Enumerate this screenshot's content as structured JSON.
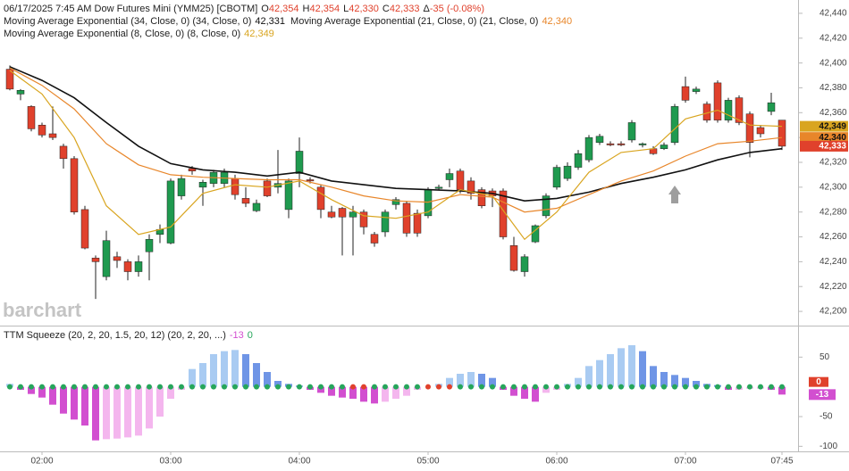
{
  "chart_data": [
    {
      "type": "candlestick",
      "title": "06/17/2025  7:45 AM Dow Futures Mini (YMM25) [CBOTM]",
      "stats": [
        {
          "label": "O",
          "value": "42,354"
        },
        {
          "label": "H",
          "value": "42,354"
        },
        {
          "label": "L",
          "value": "42,330"
        },
        {
          "label": "C",
          "value": "42,333"
        },
        {
          "label": "Δ",
          "value": "-35 (-0.08%)"
        }
      ],
      "watermark": "barchart",
      "up_color": "#1f9a4f",
      "down_color": "#e0412c",
      "x": [
        "01:45",
        "01:50",
        "01:55",
        "02:00",
        "02:05",
        "02:10",
        "02:15",
        "02:20",
        "02:25",
        "02:30",
        "02:35",
        "02:40",
        "02:45",
        "02:50",
        "02:55",
        "03:00",
        "03:05",
        "03:10",
        "03:15",
        "03:20",
        "03:25",
        "03:30",
        "03:35",
        "03:40",
        "03:45",
        "03:50",
        "03:55",
        "04:00",
        "04:05",
        "04:10",
        "04:15",
        "04:20",
        "04:25",
        "04:30",
        "04:35",
        "04:40",
        "04:45",
        "04:50",
        "04:55",
        "05:00",
        "05:05",
        "05:10",
        "05:15",
        "05:20",
        "05:25",
        "05:30",
        "05:35",
        "05:40",
        "05:45",
        "05:50",
        "05:55",
        "06:00",
        "06:05",
        "06:10",
        "06:15",
        "06:20",
        "06:25",
        "06:30",
        "06:35",
        "06:40",
        "06:45",
        "06:50",
        "06:55",
        "07:00",
        "07:05",
        "07:10",
        "07:15",
        "07:20",
        "07:25",
        "07:30",
        "07:35",
        "07:40",
        "07:45"
      ],
      "open": [
        42395,
        42375,
        42365,
        42350,
        42343,
        42333,
        42323,
        42282,
        42243,
        42228,
        42244,
        42240,
        42232,
        42248,
        42262,
        42255,
        42293,
        42315,
        42300,
        42303,
        42303,
        42307,
        42291,
        42281,
        42305,
        42300,
        42282,
        42311,
        42306,
        42300,
        42280,
        42283,
        42276,
        42280,
        42262,
        42264,
        42286,
        42287,
        42279,
        42277,
        42299,
        42306,
        42313,
        42305,
        42298,
        42297,
        42297,
        42253,
        42232,
        42256,
        42277,
        42300,
        42307,
        42316,
        42322,
        42336,
        42335,
        42335,
        42338,
        42334,
        42331,
        42331,
        42336,
        42381,
        42377,
        42367,
        42384,
        42354,
        42372,
        42359,
        42348,
        42361,
        42354
      ],
      "high": [
        42398,
        42379,
        42366,
        42352,
        42365,
        42335,
        42325,
        42285,
        42245,
        42265,
        42248,
        42242,
        42245,
        42262,
        42270,
        42307,
        42310,
        42317,
        42306,
        42314,
        42315,
        42310,
        42300,
        42290,
        42307,
        42330,
        42307,
        42340,
        42308,
        42302,
        42285,
        42284,
        42285,
        42282,
        42264,
        42282,
        42292,
        42289,
        42282,
        42300,
        42302,
        42315,
        42315,
        42308,
        42300,
        42299,
        42299,
        42260,
        42246,
        42270,
        42295,
        42318,
        42320,
        42330,
        42342,
        42343,
        42337,
        42337,
        42354,
        42336,
        42333,
        42336,
        42367,
        42389,
        42381,
        42369,
        42386,
        42372,
        42374,
        42361,
        42350,
        42376,
        42354
      ],
      "low": [
        42378,
        42370,
        42345,
        42340,
        42338,
        42315,
        42278,
        42250,
        42210,
        42225,
        42235,
        42225,
        42228,
        42225,
        42255,
        42254,
        42290,
        42310,
        42285,
        42300,
        42300,
        42290,
        42284,
        42280,
        42292,
        42295,
        42275,
        42300,
        42303,
        42275,
        42275,
        42245,
        42245,
        42262,
        42252,
        42260,
        42282,
        42260,
        42260,
        42275,
        42298,
        42300,
        42295,
        42290,
        42283,
        42284,
        42258,
        42232,
        42228,
        42255,
        42275,
        42298,
        42305,
        42314,
        42320,
        42334,
        42333,
        42333,
        42336,
        42332,
        42326,
        42330,
        42334,
        42368,
        42375,
        42352,
        42352,
        42352,
        42350,
        42324,
        42340,
        42358,
        42330
      ],
      "close": [
        42379,
        42378,
        42347,
        42342,
        42340,
        42323,
        42280,
        42251,
        42240,
        42257,
        42241,
        42232,
        42240,
        42258,
        42266,
        42305,
        42307,
        42313,
        42304,
        42312,
        42312,
        42294,
        42287,
        42287,
        42293,
        42303,
        42305,
        42329,
        42305,
        42282,
        42276,
        42276,
        42280,
        42268,
        42255,
        42280,
        42290,
        42263,
        42263,
        42298,
        42300,
        42311,
        42298,
        42295,
        42285,
        42293,
        42260,
        42233,
        42244,
        42269,
        42293,
        42316,
        42317,
        42327,
        42340,
        42341,
        42334,
        42334,
        42352,
        42335,
        42327,
        42334,
        42365,
        42370,
        42379,
        42354,
        42354,
        42370,
        42352,
        42336,
        42343,
        42368,
        42333
      ],
      "close_label": "42,333",
      "series": [
        {
          "name": "Moving Average Exponential (34, Close, 0)  (34, Close, 0)",
          "color": "#111111",
          "last_label": "42,331",
          "x": [
            "01:45",
            "02:00",
            "02:15",
            "02:30",
            "02:45",
            "03:00",
            "03:15",
            "03:30",
            "03:45",
            "04:00",
            "04:15",
            "04:30",
            "04:45",
            "05:00",
            "05:15",
            "05:30",
            "05:45",
            "06:00",
            "06:15",
            "06:30",
            "06:45",
            "07:00",
            "07:15",
            "07:30",
            "07:45"
          ],
          "values": [
            42397,
            42386,
            42372,
            42352,
            42333,
            42319,
            42314,
            42312,
            42309,
            42312,
            42305,
            42302,
            42299,
            42298,
            42297,
            42295,
            42289,
            42291,
            42296,
            42303,
            42308,
            42314,
            42322,
            42328,
            42331
          ]
        },
        {
          "name": "Moving Average Exponential (21, Close, 0)  (21, Close, 0)",
          "color": "#e8862a",
          "last_label": "42,340",
          "x": [
            "01:45",
            "02:00",
            "02:15",
            "02:30",
            "02:45",
            "03:00",
            "03:15",
            "03:30",
            "03:45",
            "04:00",
            "04:15",
            "04:30",
            "04:45",
            "05:00",
            "05:15",
            "05:30",
            "05:45",
            "06:00",
            "06:15",
            "06:30",
            "06:45",
            "07:00",
            "07:15",
            "07:30",
            "07:45"
          ],
          "values": [
            42396,
            42382,
            42363,
            42335,
            42318,
            42310,
            42308,
            42307,
            42306,
            42306,
            42300,
            42293,
            42289,
            42288,
            42294,
            42292,
            42280,
            42283,
            42294,
            42305,
            42313,
            42325,
            42335,
            42337,
            42340
          ]
        },
        {
          "name": "Moving Average Exponential (8, Close, 0)  (8, Close, 0)",
          "color": "#d9a520",
          "last_label": "42,349",
          "x": [
            "01:45",
            "02:00",
            "02:15",
            "02:30",
            "02:45",
            "03:00",
            "03:15",
            "03:30",
            "03:45",
            "04:00",
            "04:15",
            "04:30",
            "04:45",
            "05:00",
            "05:15",
            "05:30",
            "05:45",
            "06:00",
            "06:15",
            "06:30",
            "06:45",
            "07:00",
            "07:15",
            "07:30",
            "07:45"
          ],
          "values": [
            42394,
            42375,
            42340,
            42285,
            42262,
            42268,
            42295,
            42302,
            42300,
            42305,
            42290,
            42277,
            42275,
            42280,
            42298,
            42293,
            42258,
            42280,
            42312,
            42328,
            42331,
            42355,
            42362,
            42350,
            42349
          ]
        }
      ],
      "ylim": [
        42190,
        42450
      ],
      "yticks": [
        {
          "value": 42200,
          "label": "42,200"
        },
        {
          "value": 42220,
          "label": "42,220"
        },
        {
          "value": 42240,
          "label": "42,240"
        },
        {
          "value": 42260,
          "label": "42,260"
        },
        {
          "value": 42280,
          "label": "42,280"
        },
        {
          "value": 42300,
          "label": "42,300"
        },
        {
          "value": 42320,
          "label": "42,320"
        },
        {
          "value": 42340,
          "label": "42,340"
        },
        {
          "value": 42360,
          "label": "42,360"
        },
        {
          "value": 42380,
          "label": "42,380"
        },
        {
          "value": 42400,
          "label": "42,400"
        },
        {
          "value": 42420,
          "label": "42,420"
        },
        {
          "value": 42440,
          "label": "42,440"
        }
      ]
    },
    {
      "type": "histogram",
      "title": "TTM Squeeze (20, 2, 20, 1.5, 20, 12)  (20, 2, 20, ...)",
      "colors": {
        "pos_up": "#a9cbf2",
        "pos_down": "#6f95e6",
        "neg_down": "#d24fd0",
        "neg_up": "#f4b6ee"
      },
      "dot_colors": [
        "#26a65b",
        "#e0412c"
      ],
      "values": [
        5,
        -5,
        -12,
        -18,
        -30,
        -45,
        -55,
        -65,
        -90,
        -88,
        -87,
        -85,
        -82,
        -70,
        -50,
        -20,
        -5,
        30,
        40,
        55,
        60,
        62,
        55,
        40,
        25,
        10,
        5,
        2,
        -5,
        -10,
        -15,
        -18,
        -20,
        -25,
        -28,
        -25,
        -20,
        -15,
        -5,
        0,
        5,
        15,
        22,
        25,
        22,
        15,
        -5,
        -15,
        -20,
        -25,
        -10,
        -5,
        5,
        15,
        35,
        45,
        55,
        65,
        70,
        60,
        35,
        25,
        20,
        15,
        10,
        5,
        3,
        -5,
        -5,
        -3,
        -3,
        -5,
        -13
      ],
      "squeeze": [
        0,
        0,
        0,
        0,
        0,
        0,
        0,
        0,
        0,
        0,
        0,
        0,
        0,
        0,
        0,
        0,
        0,
        0,
        0,
        0,
        0,
        0,
        0,
        0,
        0,
        0,
        0,
        0,
        0,
        0,
        0,
        0,
        1,
        1,
        0,
        0,
        0,
        0,
        0,
        1,
        1,
        1,
        0,
        0,
        0,
        0,
        0,
        0,
        0,
        0,
        0,
        0,
        0,
        0,
        0,
        0,
        0,
        0,
        0,
        0,
        0,
        0,
        0,
        0,
        0,
        0,
        0,
        0,
        0,
        0,
        0,
        0,
        0
      ],
      "ylim": [
        -110,
        100
      ],
      "yticks": [
        50,
        -50,
        -100
      ],
      "xticks": [
        "02:00",
        "03:00",
        "04:00",
        "05:00",
        "06:00",
        "07:00",
        "07:45"
      ]
    }
  ]
}
